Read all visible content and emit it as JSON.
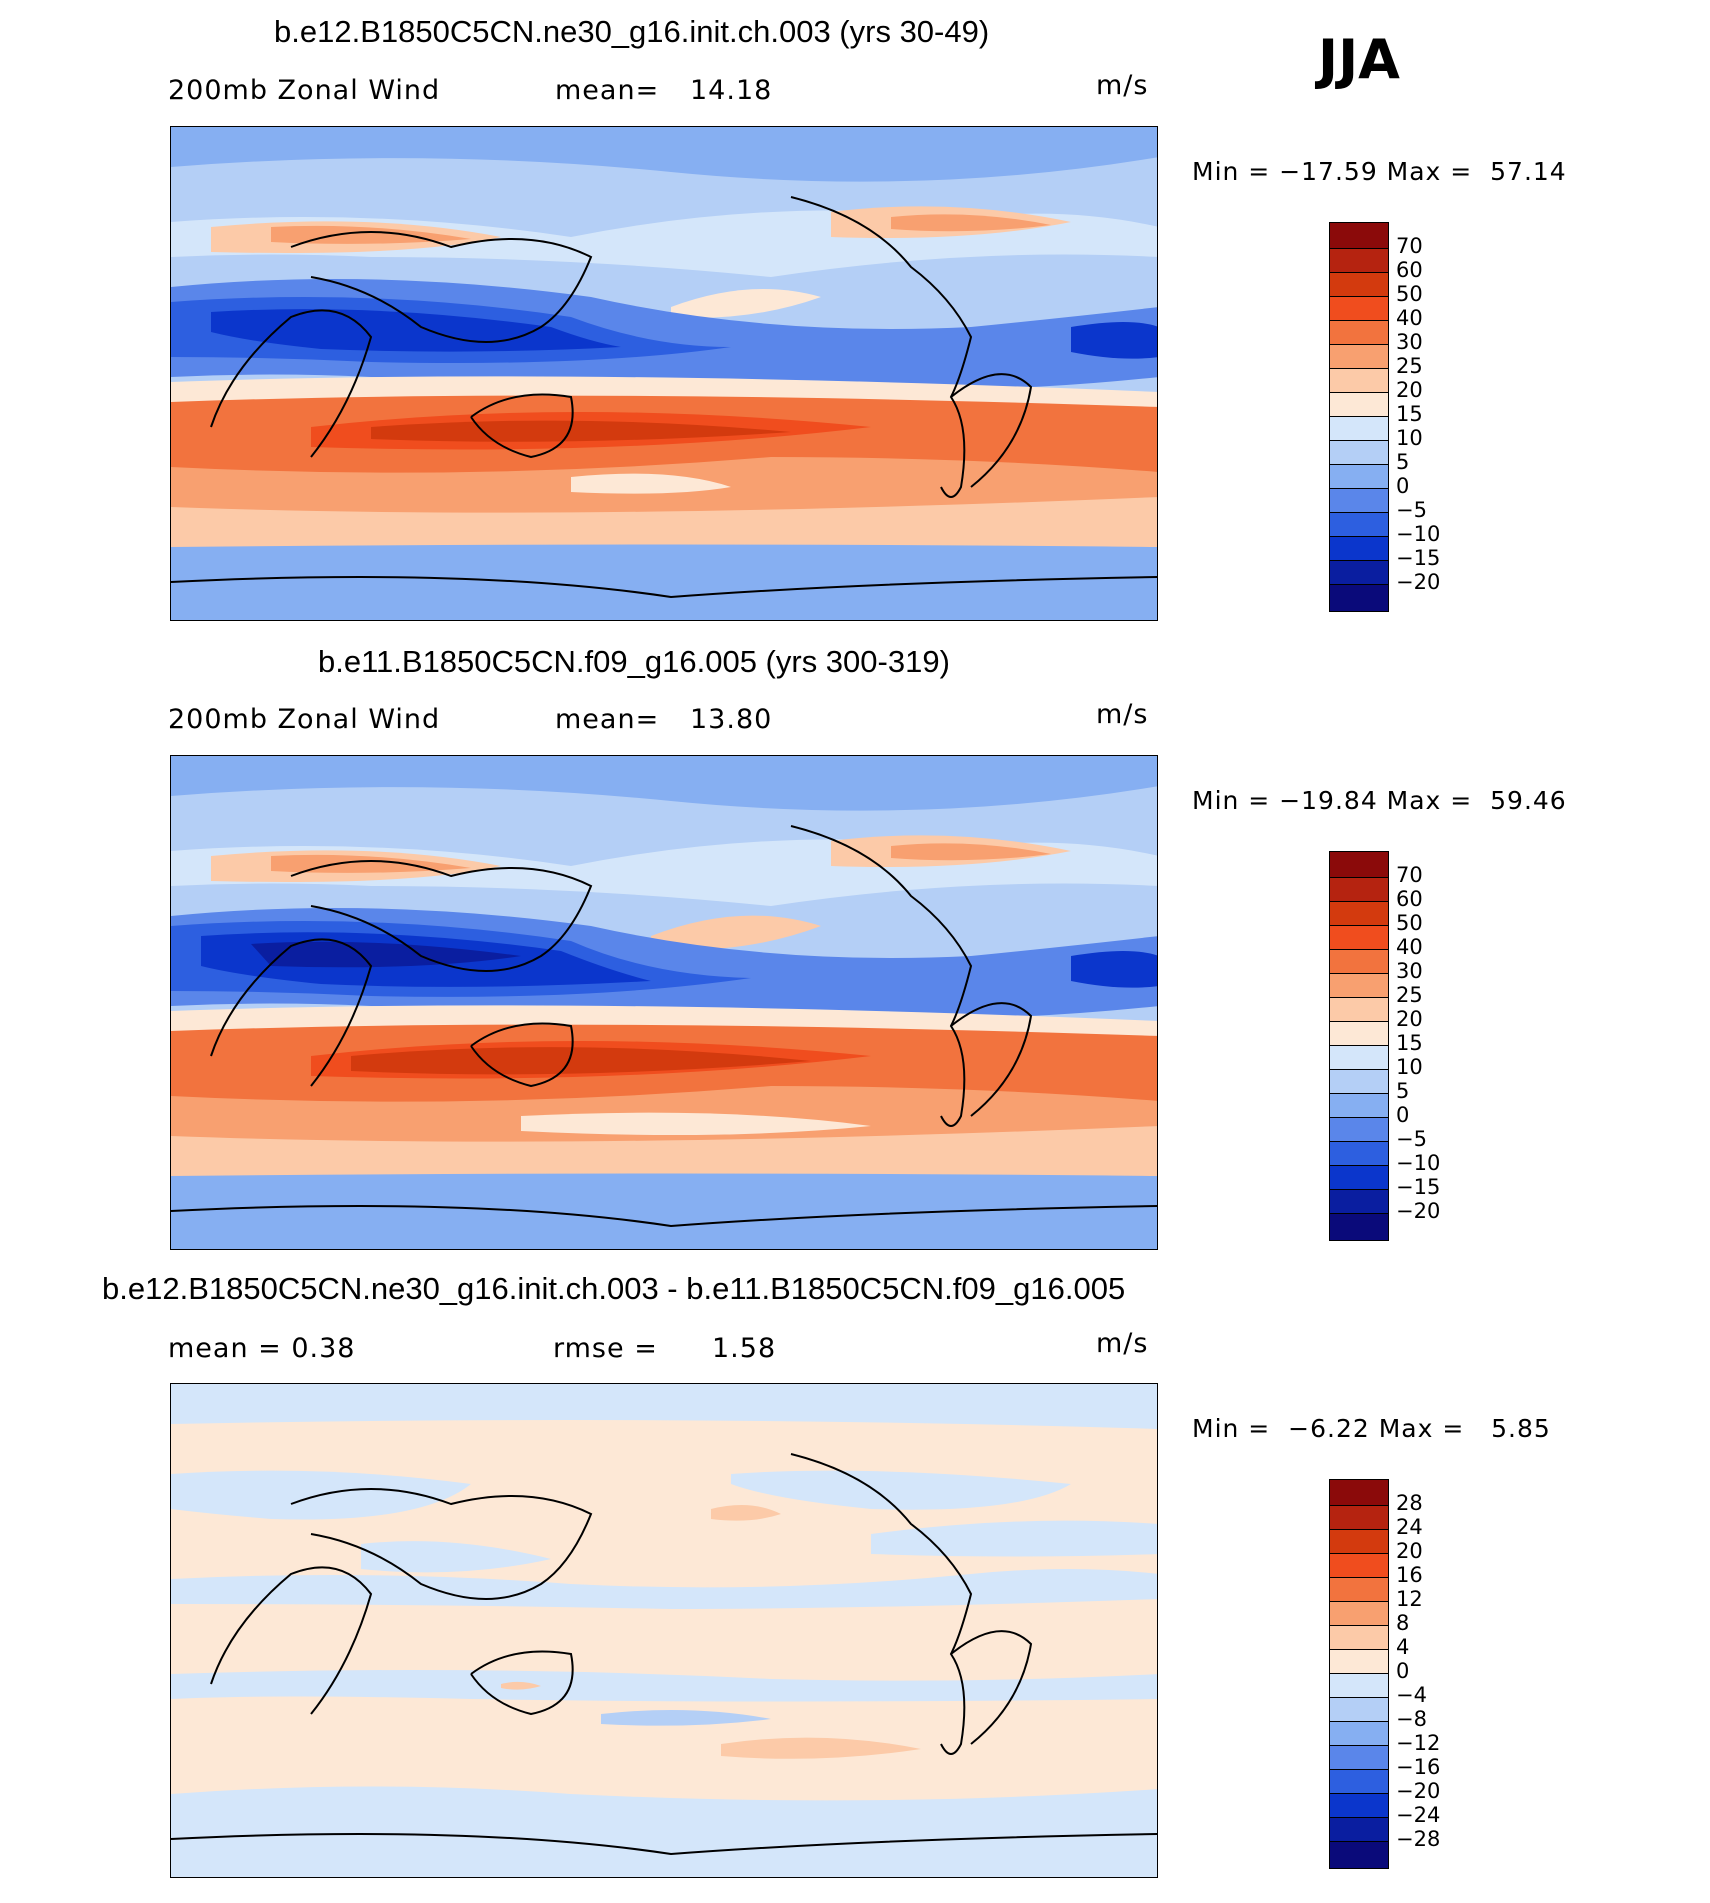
{
  "season": "JJA",
  "panels": [
    {
      "title": "b.e12.B1850C5CN.ne30_g16.init.ch.003 (yrs 30-49)",
      "left_label": "200mb Zonal Wind",
      "stat_label": "mean=",
      "stat_value": "14.18",
      "units": "m/s",
      "minmax": "Min = −17.59 Max =  57.14",
      "colorbar": [
        "70",
        "60",
        "50",
        "40",
        "30",
        "25",
        "20",
        "15",
        "10",
        "5",
        "0",
        "−5",
        "−10",
        "−15",
        "−20"
      ]
    },
    {
      "title": "b.e11.B1850C5CN.f09_g16.005 (yrs 300-319)",
      "left_label": "200mb Zonal Wind",
      "stat_label": "mean=",
      "stat_value": "13.80",
      "units": "m/s",
      "minmax": "Min = −19.84 Max =  59.46",
      "colorbar": [
        "70",
        "60",
        "50",
        "40",
        "30",
        "25",
        "20",
        "15",
        "10",
        "5",
        "0",
        "−5",
        "−10",
        "−15",
        "−20"
      ]
    },
    {
      "title": "b.e12.B1850C5CN.ne30_g16.init.ch.003 - b.e11.B1850C5CN.f09_g16.005",
      "left_label": "mean =    0.38",
      "stat_label": "rmse =",
      "stat_value": "1.58",
      "units": "m/s",
      "minmax": "Min =  −6.22 Max =   5.85",
      "colorbar": [
        "28",
        "24",
        "20",
        "16",
        "12",
        "8",
        "4",
        "0",
        "−4",
        "−8",
        "−12",
        "−16",
        "−20",
        "−24",
        "−28"
      ]
    }
  ],
  "colors": {
    "scale": [
      "#8b0a0a",
      "#b52310",
      "#d33a0e",
      "#f04d1e",
      "#f2733e",
      "#f8a070",
      "#fccaa8",
      "#fde8d6",
      "#d4e6fa",
      "#b4cff6",
      "#86aff2",
      "#5a86ea",
      "#2d5fe0",
      "#0b36cc",
      "#0a1ea0",
      "#0a0a7a"
    ]
  }
}
